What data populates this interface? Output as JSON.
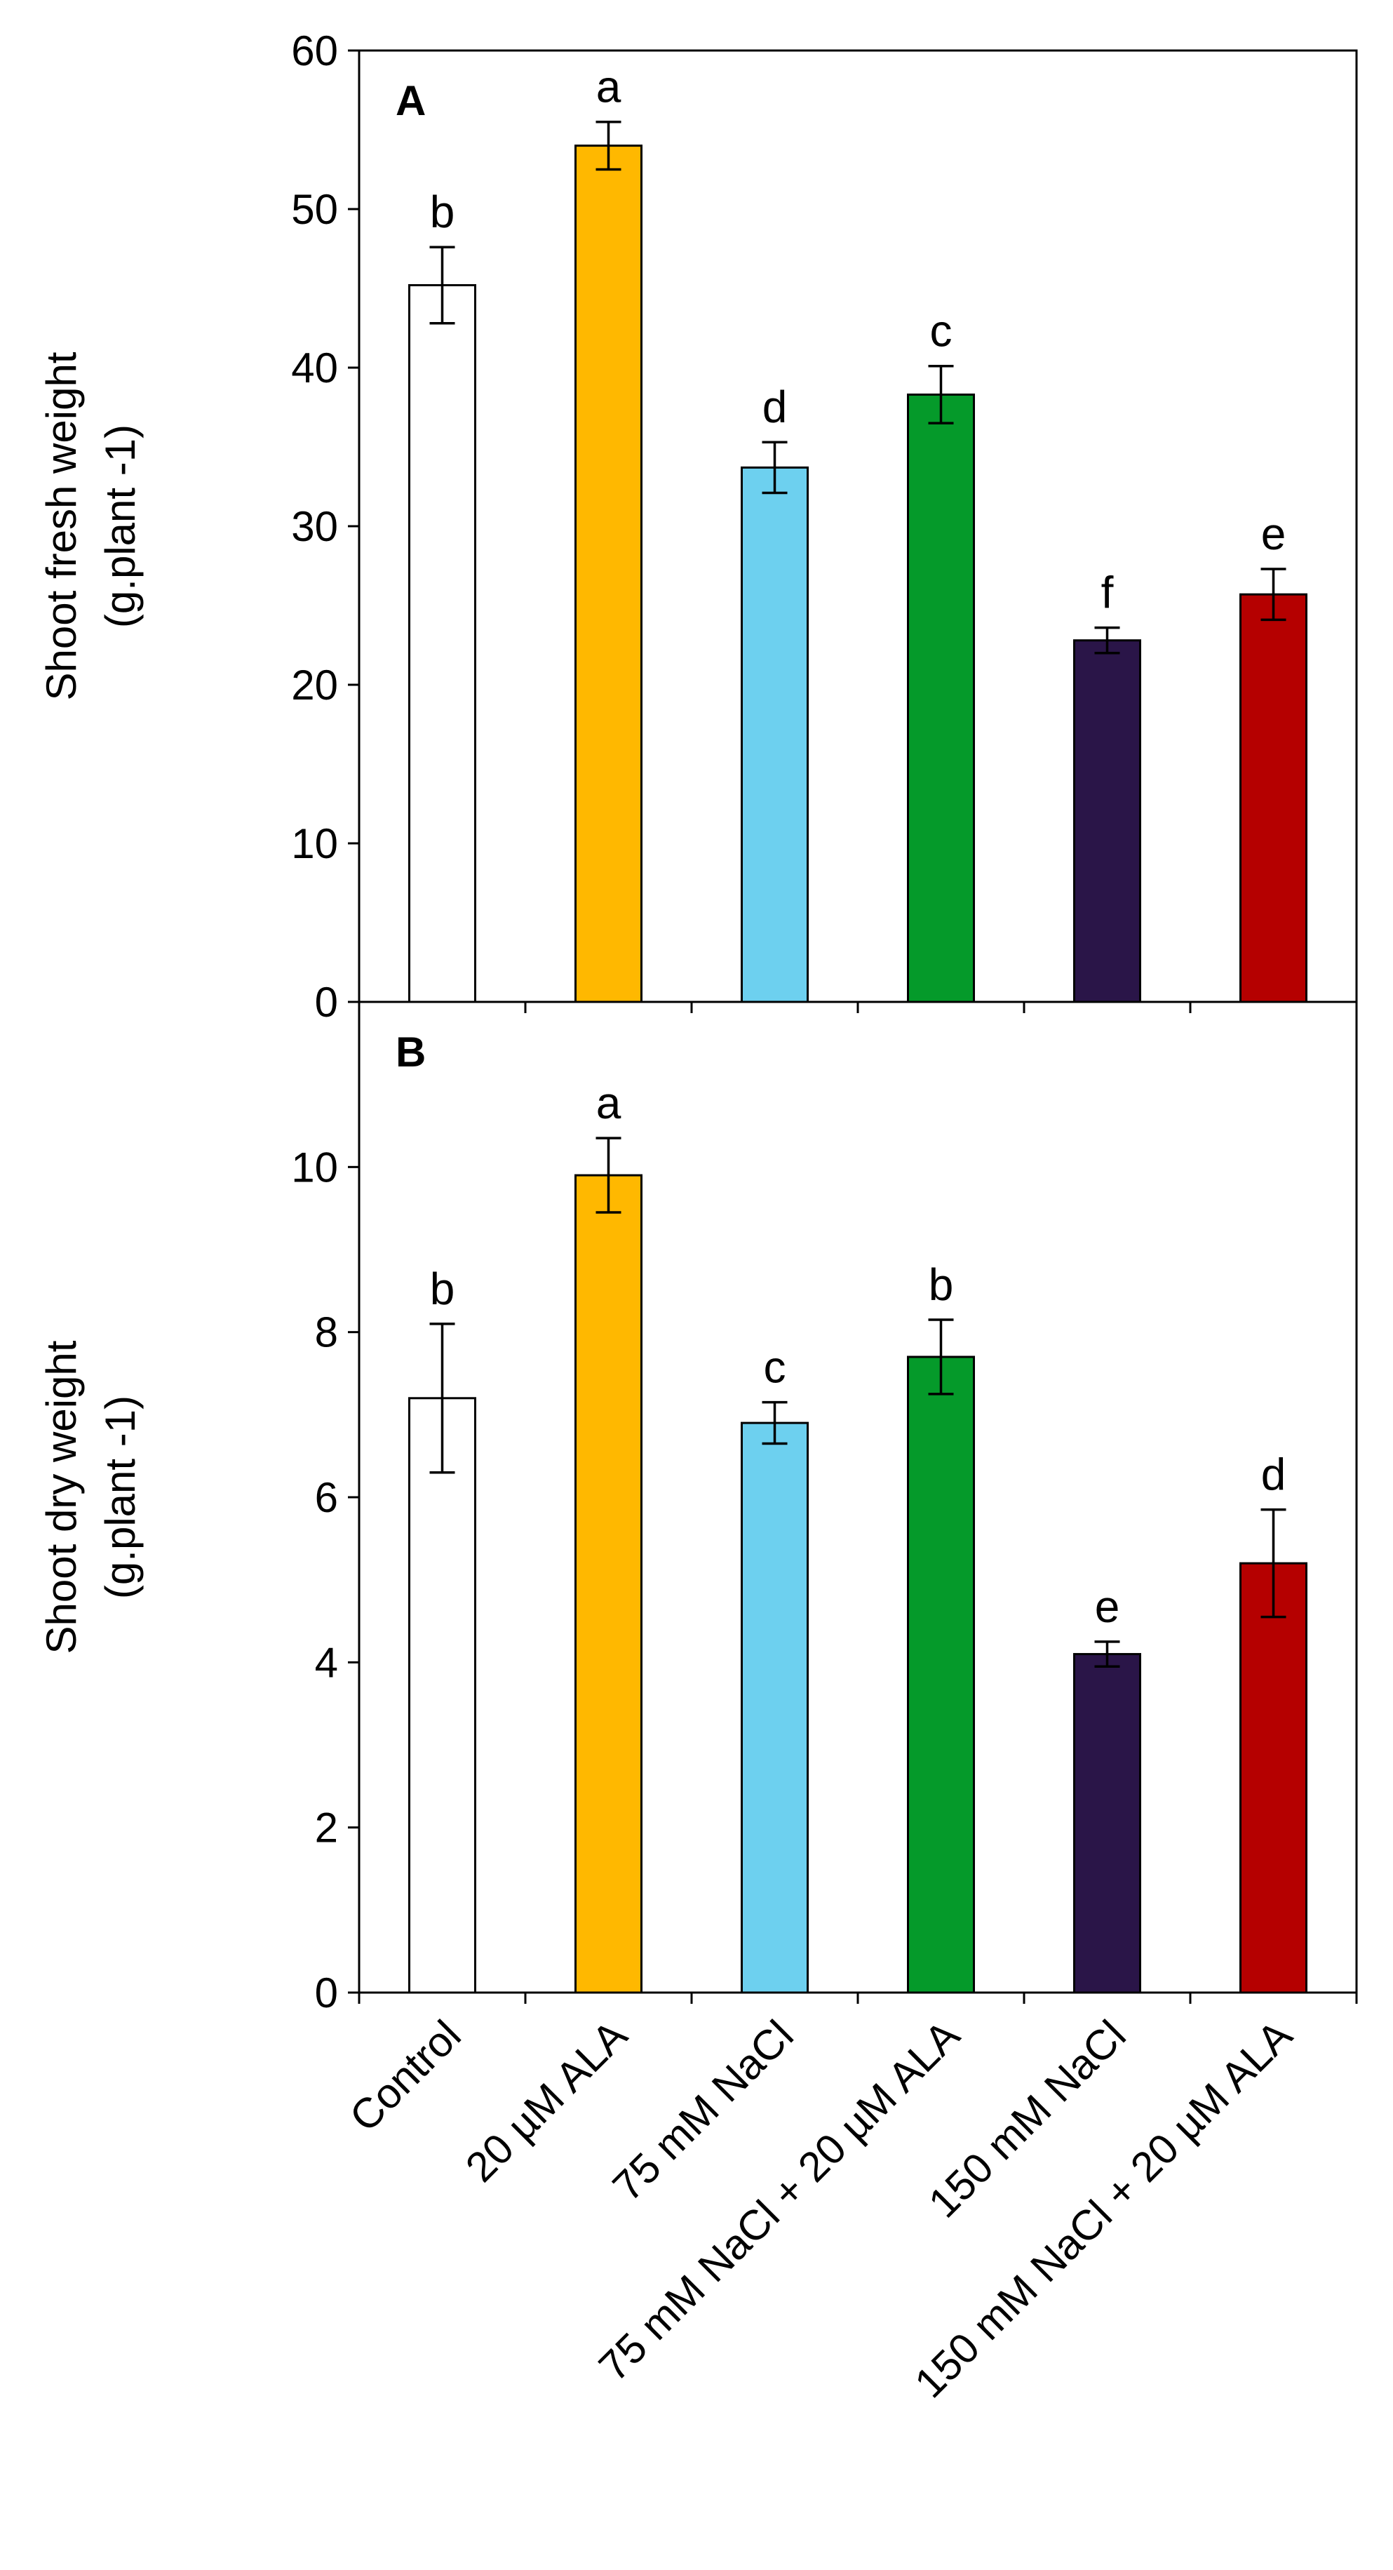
{
  "chart_data": [
    {
      "type": "bar",
      "panel": "A",
      "title": "",
      "ylabel": "Shoot fresh weight",
      "yunit": "(g.plant -1)",
      "ylim": [
        0,
        60
      ],
      "yticks": [
        0,
        10,
        20,
        30,
        40,
        50,
        60
      ],
      "categories": [
        "Control",
        "20 µM ALA",
        "75 mM NaCl",
        "75 mM NaCl + 20 µM ALA",
        "150 mM NaCl",
        "150 mM NaCl + 20 µM ALA"
      ],
      "values": [
        45.2,
        54.0,
        33.7,
        38.3,
        22.8,
        25.7
      ],
      "errors": [
        2.4,
        1.5,
        1.6,
        1.8,
        0.8,
        1.6
      ],
      "letters": [
        "b",
        "a",
        "d",
        "c",
        "f",
        "e"
      ],
      "colors": [
        "#ffffff",
        "#ffb800",
        "#6dd0ef",
        "#059a2a",
        "#2a1548",
        "#b50000"
      ]
    },
    {
      "type": "bar",
      "panel": "B",
      "title": "",
      "ylabel": "Shoot dry weight",
      "yunit": "(g.plant -1)",
      "ylim": [
        0,
        12
      ],
      "yticks": [
        0,
        2,
        4,
        6,
        8,
        10
      ],
      "categories": [
        "Control",
        "20 µM ALA",
        "75 mM NaCl",
        "75 mM NaCl + 20 µM ALA",
        "150 mM NaCl",
        "150 mM NaCl + 20 µM ALA"
      ],
      "values": [
        7.2,
        9.9,
        6.9,
        7.7,
        4.1,
        5.2
      ],
      "errors": [
        0.9,
        0.45,
        0.25,
        0.45,
        0.15,
        0.65
      ],
      "letters": [
        "b",
        "a",
        "c",
        "b",
        "e",
        "d"
      ],
      "colors": [
        "#ffffff",
        "#ffb800",
        "#6dd0ef",
        "#059a2a",
        "#2a1548",
        "#b50000"
      ]
    }
  ]
}
